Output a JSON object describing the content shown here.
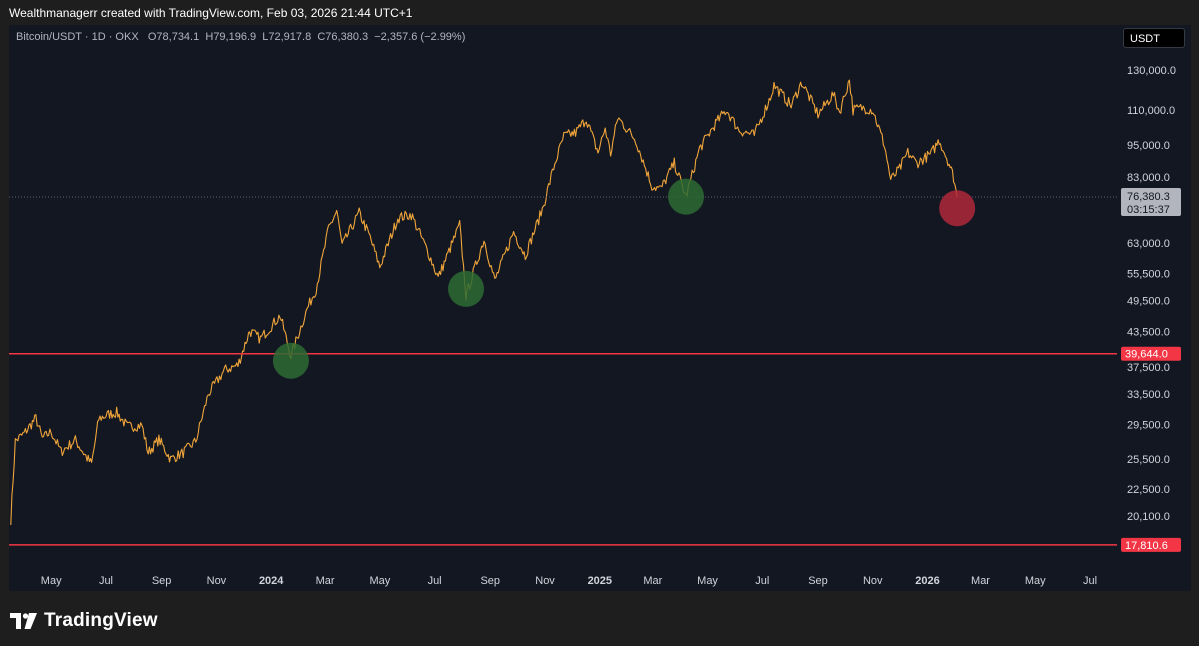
{
  "attribution": "Wealthmanagerr created with TradingView.com, Feb 03, 2026 21:44 UTC+1",
  "legend": {
    "symbol": "Bitcoin/USDT · 1D · OKX",
    "open_label": "O",
    "open": "78,734.1",
    "high_label": "H",
    "high": "79,196.9",
    "low_label": "L",
    "low": "72,917.8",
    "close_label": "C",
    "close": "76,380.3",
    "change": "−2,357.6 (−2.99%)"
  },
  "currency_button": "USDT",
  "footer_brand": "TradingView",
  "colors": {
    "background": "#131722",
    "candle": "#f0a53a",
    "support_line": "#f23645",
    "green_marker": "#2e6b34",
    "red_marker": "#b0283a"
  },
  "chart_data": {
    "type": "line",
    "scale": "log",
    "x_range": [
      "2023-03-15",
      "2026-07-31"
    ],
    "ylim": [
      15000,
      150000
    ],
    "price_ticks": [
      "130,000.0",
      "110,000.0",
      "95,000.0",
      "83,000.0",
      "63,000.0",
      "55,500.0",
      "49,500.0",
      "43,500.0",
      "37,500.0",
      "33,500.0",
      "29,500.0",
      "25,500.0",
      "22,500.0",
      "20,100.0"
    ],
    "time_ticks": [
      "May",
      "Jul",
      "Sep",
      "Nov",
      "2024",
      "Mar",
      "May",
      "Jul",
      "Sep",
      "Nov",
      "2025",
      "Mar",
      "May",
      "Jul",
      "Sep",
      "Nov",
      "2026",
      "Mar",
      "May",
      "Jul"
    ],
    "current_price": "76,380.3",
    "countdown": "03:15:37",
    "horizontal_levels": [
      {
        "label": "39,644.0",
        "value": 39644
      },
      {
        "label": "17,810.6",
        "value": 17810.6
      }
    ],
    "markers": [
      {
        "date": "2024-01-23",
        "value": 38500,
        "color": "green"
      },
      {
        "date": "2024-08-05",
        "value": 52000,
        "color": "green"
      },
      {
        "date": "2025-04-07",
        "value": 76500,
        "color": "green"
      },
      {
        "date": "2026-02-03",
        "value": 72900,
        "color": "red"
      }
    ],
    "series": [
      {
        "values": [
          [
            "2023-03-17",
            19800
          ],
          [
            "2023-03-22",
            27500
          ],
          [
            "2023-04-01",
            28400
          ],
          [
            "2023-04-14",
            30300
          ],
          [
            "2023-04-21",
            27800
          ],
          [
            "2023-05-01",
            28600
          ],
          [
            "2023-05-12",
            26300
          ],
          [
            "2023-05-28",
            27600
          ],
          [
            "2023-06-10",
            25600
          ],
          [
            "2023-06-15",
            25000
          ],
          [
            "2023-06-23",
            30200
          ],
          [
            "2023-07-05",
            30800
          ],
          [
            "2023-07-13",
            31000
          ],
          [
            "2023-07-25",
            29200
          ],
          [
            "2023-08-10",
            29400
          ],
          [
            "2023-08-17",
            26200
          ],
          [
            "2023-08-29",
            27700
          ],
          [
            "2023-09-11",
            25500
          ],
          [
            "2023-09-25",
            26200
          ],
          [
            "2023-10-09",
            27500
          ],
          [
            "2023-10-23",
            33500
          ],
          [
            "2023-11-10",
            37000
          ],
          [
            "2023-11-25",
            37800
          ],
          [
            "2023-12-08",
            43600
          ],
          [
            "2023-12-20",
            42200
          ],
          [
            "2024-01-11",
            46500
          ],
          [
            "2024-01-23",
            39300
          ],
          [
            "2024-02-10",
            47800
          ],
          [
            "2024-02-20",
            52000
          ],
          [
            "2024-03-05",
            67000
          ],
          [
            "2024-03-14",
            72000
          ],
          [
            "2024-03-20",
            62300
          ],
          [
            "2024-04-08",
            71500
          ],
          [
            "2024-04-20",
            64600
          ],
          [
            "2024-05-01",
            57000
          ],
          [
            "2024-05-21",
            70000
          ],
          [
            "2024-06-05",
            71000
          ],
          [
            "2024-06-24",
            60500
          ],
          [
            "2024-07-05",
            54500
          ],
          [
            "2024-07-29",
            68000
          ],
          [
            "2024-08-05",
            50500
          ],
          [
            "2024-08-25",
            64000
          ],
          [
            "2024-09-06",
            53800
          ],
          [
            "2024-09-27",
            66000
          ],
          [
            "2024-10-10",
            59800
          ],
          [
            "2024-10-29",
            72500
          ],
          [
            "2024-11-12",
            88000
          ],
          [
            "2024-11-22",
            98500
          ],
          [
            "2024-12-05",
            100000
          ],
          [
            "2024-12-17",
            106000
          ],
          [
            "2024-12-30",
            92000
          ],
          [
            "2025-01-07",
            102000
          ],
          [
            "2025-01-13",
            91500
          ],
          [
            "2025-01-21",
            106500
          ],
          [
            "2025-02-10",
            97000
          ],
          [
            "2025-02-28",
            80000
          ],
          [
            "2025-03-10",
            79000
          ],
          [
            "2025-03-25",
            88000
          ],
          [
            "2025-04-07",
            76500
          ],
          [
            "2025-04-22",
            93500
          ],
          [
            "2025-05-10",
            104000
          ],
          [
            "2025-05-22",
            110000
          ],
          [
            "2025-06-05",
            101000
          ],
          [
            "2025-06-22",
            99000
          ],
          [
            "2025-07-10",
            116000
          ],
          [
            "2025-07-14",
            122000
          ],
          [
            "2025-08-02",
            112000
          ],
          [
            "2025-08-14",
            123500
          ],
          [
            "2025-09-01",
            108000
          ],
          [
            "2025-09-18",
            117500
          ],
          [
            "2025-09-25",
            109000
          ],
          [
            "2025-10-06",
            125000
          ],
          [
            "2025-10-10",
            110000
          ],
          [
            "2025-10-20",
            111000
          ],
          [
            "2025-11-01",
            110000
          ],
          [
            "2025-11-14",
            95000
          ],
          [
            "2025-11-21",
            82000
          ],
          [
            "2025-12-01",
            86000
          ],
          [
            "2025-12-10",
            92000
          ],
          [
            "2025-12-20",
            88000
          ],
          [
            "2026-01-05",
            91500
          ],
          [
            "2026-01-14",
            97000
          ],
          [
            "2026-01-25",
            88000
          ],
          [
            "2026-01-30",
            83000
          ],
          [
            "2026-02-03",
            76380
          ]
        ]
      }
    ]
  }
}
